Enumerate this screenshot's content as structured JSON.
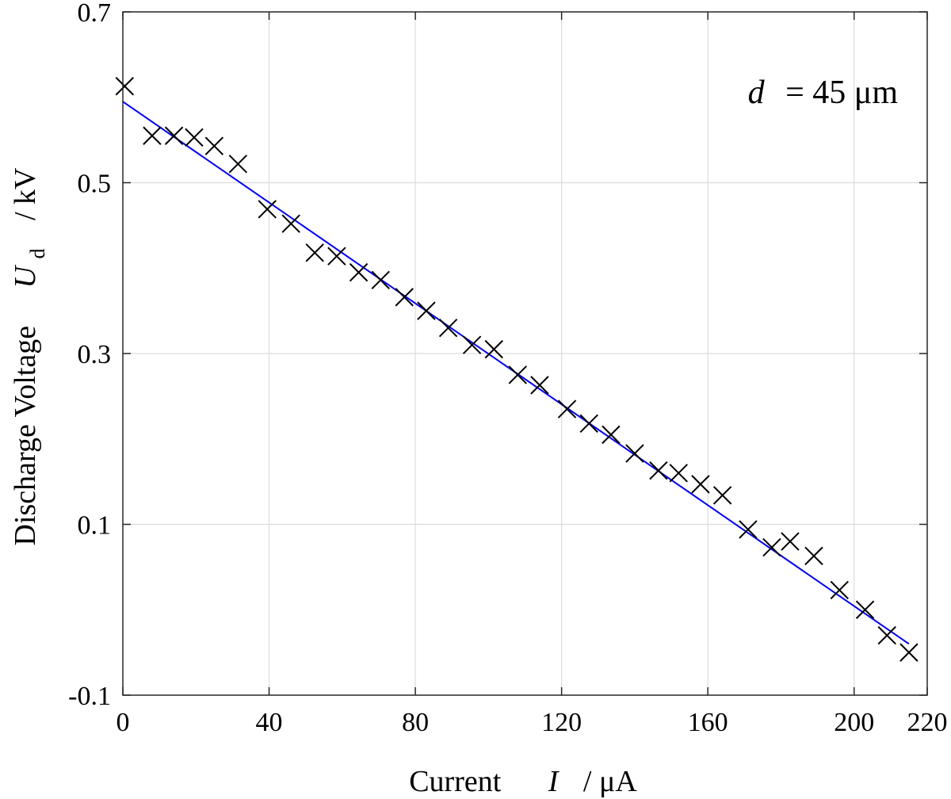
{
  "chart_data": {
    "type": "scatter",
    "xlabel": {
      "prefix": "Current",
      "symbol": "I",
      "unit": "/  μA"
    },
    "ylabel": {
      "prefix": "Discharge Voltage",
      "symbol": "U",
      "subscript": "d",
      "unit": "/  kV"
    },
    "annotation": {
      "symbol": "d",
      "text": "= 45  μm"
    },
    "xlim": [
      0,
      220
    ],
    "ylim": [
      -0.1,
      0.7
    ],
    "xticks": [
      0,
      40,
      80,
      120,
      160,
      200,
      220
    ],
    "xtick_labels": [
      "0",
      "40",
      "80",
      "120",
      "160",
      "200",
      "220"
    ],
    "yticks": [
      -0.1,
      0.1,
      0.3,
      0.5,
      0.7
    ],
    "ytick_labels": [
      "-0.1",
      "0.1",
      "0.3",
      "0.5",
      "0.7"
    ],
    "grid": true,
    "series": [
      {
        "marker": "x",
        "color": "#000000",
        "x": [
          0.5,
          8,
          14,
          19.5,
          25,
          31.5,
          39.5,
          46,
          52.5,
          58.5,
          64.5,
          70.5,
          77,
          83,
          89,
          95.5,
          101.5,
          108,
          114,
          121.5,
          127.5,
          133.5,
          140,
          146.5,
          152,
          158,
          164,
          171,
          177.5,
          182.5,
          189,
          196,
          203,
          209,
          215
        ],
        "y": [
          0.613,
          0.555,
          0.555,
          0.553,
          0.543,
          0.522,
          0.469,
          0.452,
          0.418,
          0.414,
          0.395,
          0.386,
          0.366,
          0.35,
          0.33,
          0.31,
          0.305,
          0.275,
          0.263,
          0.235,
          0.218,
          0.205,
          0.183,
          0.163,
          0.16,
          0.147,
          0.134,
          0.094,
          0.073,
          0.08,
          0.063,
          0.023,
          0.0,
          -0.03,
          -0.05
        ]
      },
      {
        "type": "line",
        "color": "#0000ee",
        "x": [
          0,
          215
        ],
        "y": [
          0.595,
          -0.04
        ]
      }
    ]
  }
}
